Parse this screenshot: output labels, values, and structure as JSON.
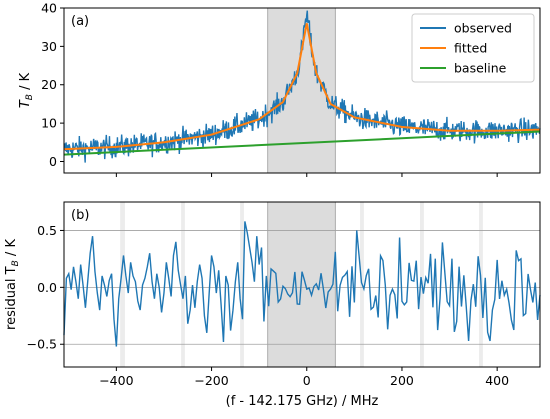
{
  "colors": {
    "observed": "#1f77b4",
    "fitted": "#ff7f0e",
    "baseline": "#2ca02c",
    "shade": "#dcdcdc",
    "grid": "#a0a0a0"
  },
  "chart_data": [
    {
      "type": "line",
      "panel_label": "(a)",
      "xlim": [
        -510,
        490
      ],
      "ylim": [
        -3,
        40
      ],
      "ylabel_main": "T",
      "ylabel_sub": "B",
      "ylabel_unit": " / K",
      "yticks": [
        0,
        10,
        20,
        30,
        40
      ],
      "ytick_labels": [
        "0",
        "10",
        "20",
        "30",
        "40"
      ],
      "grid": false,
      "legend_placement": "upper right",
      "shaded_regions": [
        [
          -82,
          60
        ]
      ],
      "series": [
        {
          "name": "observed",
          "description_points": {
            "x": [
              -510,
              -400,
              -300,
              -200,
              -100,
              -50,
              -20,
              0,
              20,
              50,
              100,
              200,
              300,
              400,
              490
            ],
            "y": [
              3.2,
              3.8,
              5.0,
              7.0,
              11.0,
              15.5,
              23.0,
              36.0,
              23.0,
              15.0,
              11.5,
              9.0,
              8.0,
              8.0,
              8.3
            ]
          },
          "noise_sd": 1.6
        },
        {
          "name": "fitted",
          "x": [
            -510,
            -400,
            -300,
            -200,
            -100,
            -50,
            -20,
            0,
            20,
            50,
            100,
            200,
            300,
            400,
            490
          ],
          "y": [
            3.2,
            3.8,
            5.0,
            7.0,
            11.0,
            15.5,
            23.0,
            36.0,
            23.0,
            15.0,
            11.5,
            9.0,
            8.0,
            8.0,
            8.3
          ]
        },
        {
          "name": "baseline",
          "x": [
            -510,
            490
          ],
          "y": [
            1.8,
            7.8
          ]
        }
      ]
    },
    {
      "type": "line",
      "panel_label": "(b)",
      "xlim": [
        -510,
        490
      ],
      "ylim": [
        -0.7,
        0.75
      ],
      "xlabel": "(f - 142.175 GHz) / MHz",
      "ylabel_main": "residual T",
      "ylabel_sub": "B",
      "ylabel_unit": " / K",
      "xticks": [
        -400,
        -200,
        0,
        200,
        400
      ],
      "xtick_labels": [
        "−400",
        "−200",
        "0",
        "200",
        "400"
      ],
      "yticks": [
        -0.5,
        0.0,
        0.5
      ],
      "ytick_labels": [
        "−0.5",
        "0.0",
        "0.5"
      ],
      "grid_lines_y": [
        -0.5,
        0.0,
        0.5
      ],
      "shaded_regions": [
        [
          -82,
          60
        ]
      ],
      "faint_bands": [
        [
          -392,
          -382
        ],
        [
          -264,
          -256
        ],
        [
          -140,
          -132
        ],
        [
          112,
          120
        ],
        [
          238,
          246
        ],
        [
          362,
          370
        ]
      ],
      "series": [
        {
          "name": "",
          "x": [
            -510,
            -505,
            -500,
            -495,
            -490,
            -485,
            -480,
            -475,
            -470,
            -465,
            -460,
            -455,
            -450,
            -445,
            -440,
            -435,
            -430,
            -425,
            -420,
            -415,
            -410,
            -405,
            -400,
            -395,
            -390,
            -385,
            -380,
            -375,
            -370,
            -365,
            -360,
            -355,
            -350,
            -345,
            -340,
            -335,
            -330,
            -325,
            -320,
            -315,
            -310,
            -305,
            -300,
            -295,
            -290,
            -285,
            -280,
            -275,
            -270,
            -265,
            -260,
            -255,
            -250,
            -245,
            -240,
            -235,
            -230,
            -225,
            -220,
            -215,
            -210,
            -205,
            -200,
            -195,
            -190,
            -185,
            -180,
            -175,
            -170,
            -165,
            -160,
            -155,
            -150,
            -145,
            -140,
            -135,
            -130,
            -125,
            -120,
            -115,
            -110,
            -105,
            -100,
            -95,
            -90,
            -85
          ],
          "y": [
            -0.42,
            0.08,
            0.12,
            -0.02,
            0.18,
            0.05,
            -0.1,
            0.2,
            0.02,
            -0.18,
            0.06,
            0.3,
            0.45,
            0.14,
            -0.05,
            -0.2,
            0.1,
            0.02,
            -0.08,
            0.06,
            0.12,
            -0.28,
            -0.52,
            -0.1,
            0.08,
            0.28,
            0.1,
            -0.05,
            0.22,
            0.1,
            0.05,
            -0.12,
            -0.2,
            0.02,
            0.08,
            0.18,
            0.3,
            0.05,
            -0.1,
            0.12,
            0.0,
            -0.22,
            -0.05,
            0.22,
            0.08,
            -0.08,
            0.28,
            0.4,
            0.15,
            0.02,
            -0.1,
            0.1,
            -0.32,
            -0.2,
            0.02,
            -0.18,
            0.05,
            0.2,
            0.08,
            -0.25,
            -0.4,
            -0.05,
            0.28,
            0.18,
            -0.05,
            0.15,
            -0.15,
            -0.48,
            0.1,
            0.02,
            -0.38,
            -0.2,
            0.05,
            0.22,
            -0.1,
            -0.28,
            0.58,
            0.48,
            0.35,
            0.22,
            0.05,
            0.45,
            0.2,
            0.35,
            -0.3,
            0.1
          ]
        }
      ]
    }
  ]
}
